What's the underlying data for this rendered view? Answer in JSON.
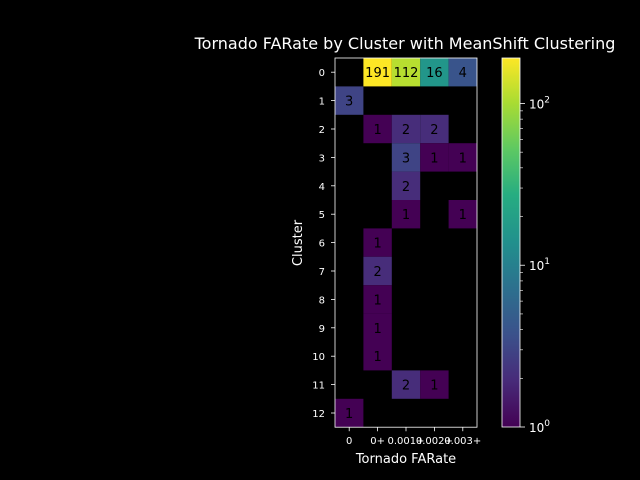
{
  "chart_data": {
    "type": "heatmap",
    "title": "Tornado FARate by Cluster with MeanShift Clustering",
    "xlabel": "Tornado FARate",
    "ylabel": "Cluster",
    "x_categories": [
      "0",
      "0+",
      "0.001+",
      "0.002+",
      "0.003+"
    ],
    "y_categories": [
      "0",
      "1",
      "2",
      "3",
      "4",
      "5",
      "6",
      "7",
      "8",
      "9",
      "10",
      "11",
      "12"
    ],
    "values": [
      [
        null,
        191,
        112,
        16,
        4
      ],
      [
        3,
        null,
        null,
        null,
        null
      ],
      [
        null,
        1,
        2,
        2,
        null
      ],
      [
        null,
        null,
        3,
        1,
        1
      ],
      [
        null,
        null,
        2,
        null,
        null
      ],
      [
        null,
        null,
        1,
        null,
        1
      ],
      [
        null,
        1,
        null,
        null,
        null
      ],
      [
        null,
        2,
        null,
        null,
        null
      ],
      [
        null,
        1,
        null,
        null,
        null
      ],
      [
        null,
        1,
        null,
        null,
        null
      ],
      [
        null,
        1,
        null,
        null,
        null
      ],
      [
        null,
        null,
        2,
        1,
        null
      ],
      [
        1,
        null,
        null,
        null,
        null
      ]
    ],
    "colorbar": {
      "scale": "log",
      "range": [
        1,
        191
      ],
      "colormap": "viridis",
      "ticks": [
        {
          "value": 1,
          "base": "10",
          "exp": "0"
        },
        {
          "value": 10,
          "base": "10",
          "exp": "1"
        },
        {
          "value": 100,
          "base": "10",
          "exp": "2"
        }
      ]
    },
    "background": "#000000"
  }
}
